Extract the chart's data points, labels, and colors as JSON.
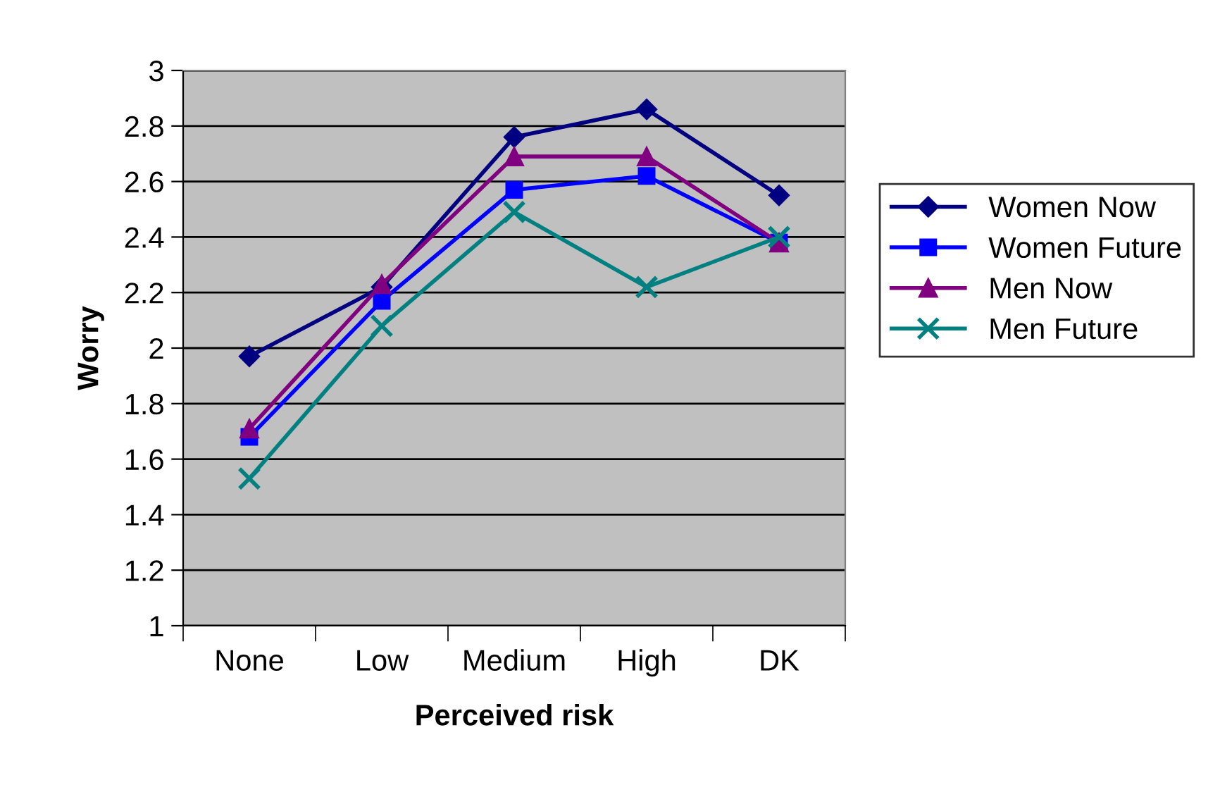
{
  "chart_data": {
    "type": "line",
    "xlabel": "Perceived risk",
    "ylabel": "Worry",
    "categories": [
      "None",
      "Low",
      "Medium",
      "High",
      "DK"
    ],
    "series": [
      {
        "name": "Women Now",
        "color": "#000080",
        "marker": "diamond",
        "values": [
          1.97,
          2.22,
          2.76,
          2.86,
          2.55
        ]
      },
      {
        "name": "Women Future",
        "color": "#0000ff",
        "marker": "square",
        "values": [
          1.68,
          2.17,
          2.57,
          2.62,
          2.38
        ]
      },
      {
        "name": "Men Now",
        "color": "#800080",
        "marker": "triangle",
        "values": [
          1.71,
          2.23,
          2.69,
          2.69,
          2.38
        ]
      },
      {
        "name": "Men Future",
        "color": "#008080",
        "marker": "cross",
        "values": [
          1.53,
          2.08,
          2.49,
          2.22,
          2.4
        ]
      }
    ],
    "ylim": [
      1,
      3
    ],
    "yticks": [
      1,
      1.2,
      1.4,
      1.6,
      1.8,
      2,
      2.2,
      2.4,
      2.6,
      2.8,
      3
    ],
    "grid": "y",
    "legend": "right",
    "line_style": "solid"
  }
}
